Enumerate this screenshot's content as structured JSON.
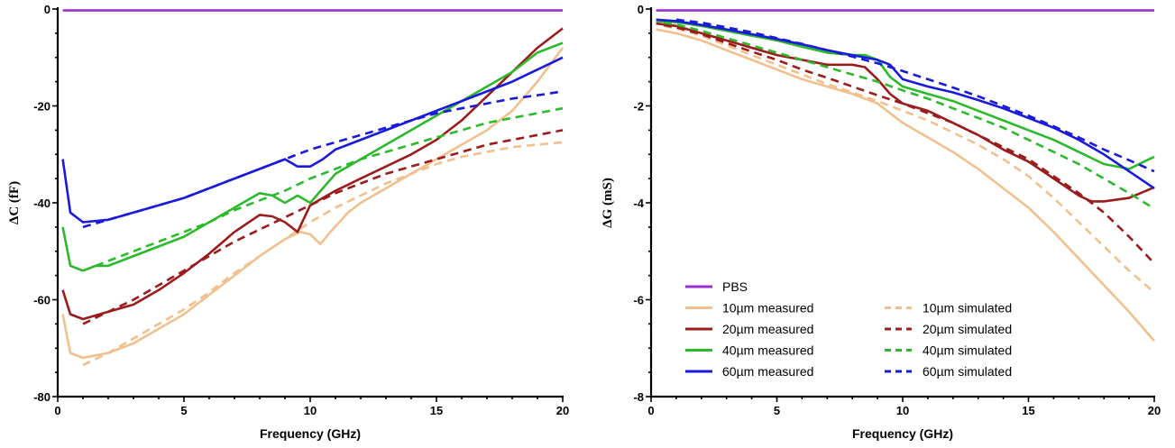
{
  "chart_data": [
    {
      "type": "line",
      "xlabel": "Frequency (GHz)",
      "ylabel": "ΔC (fF)",
      "xlim": [
        0,
        20
      ],
      "ylim": [
        -80,
        0
      ],
      "xticks": [
        0,
        5,
        10,
        15,
        20
      ],
      "yticks": [
        0,
        -20,
        -40,
        -60,
        -80
      ],
      "grid": false,
      "series": [
        {
          "name": "PBS",
          "color": "#9b30d0",
          "style": "solid",
          "x": [
            0.2,
            20
          ],
          "y": [
            -0.3,
            -0.3
          ]
        },
        {
          "name": "10µm measured",
          "color": "#f2c08e",
          "style": "solid",
          "x": [
            0.2,
            0.5,
            1,
            1.5,
            2,
            3,
            4,
            5,
            6,
            7,
            8,
            9,
            9.6,
            10,
            10.4,
            10.8,
            11.5,
            12,
            13,
            14,
            15,
            16,
            17,
            18,
            19,
            20
          ],
          "y": [
            -63,
            -71,
            -72,
            -71.5,
            -71,
            -69,
            -66,
            -63,
            -59,
            -55,
            -51,
            -47.5,
            -46,
            -46.5,
            -48.5,
            -46,
            -42,
            -40,
            -37,
            -34,
            -31,
            -28,
            -25,
            -21,
            -15,
            -8
          ]
        },
        {
          "name": "10µm simulated",
          "color": "#f2c08e",
          "style": "dashed",
          "x": [
            1,
            2,
            3,
            4,
            5,
            6,
            7,
            8,
            9,
            10,
            11,
            12,
            13,
            14,
            15,
            16,
            17,
            18,
            19,
            20
          ],
          "y": [
            -73.5,
            -71,
            -68,
            -65,
            -62,
            -58.5,
            -54.5,
            -51,
            -47.5,
            -44,
            -41,
            -38.5,
            -36,
            -34,
            -32,
            -30.5,
            -29.5,
            -28.5,
            -28,
            -27.5
          ]
        },
        {
          "name": "20µm measured",
          "color": "#9b1c1c",
          "style": "solid",
          "x": [
            0.2,
            0.5,
            1,
            2,
            3,
            4,
            5,
            6,
            7,
            8,
            8.5,
            9,
            9.5,
            10,
            10.5,
            11,
            12,
            13,
            14,
            15,
            16,
            17,
            18,
            19,
            20
          ],
          "y": [
            -58,
            -63,
            -64,
            -62.5,
            -61,
            -58,
            -54.5,
            -50.5,
            -46,
            -42.5,
            -42.8,
            -44,
            -46,
            -40.5,
            -39,
            -37.5,
            -35,
            -32.5,
            -30,
            -27,
            -23,
            -18,
            -13,
            -8,
            -4
          ]
        },
        {
          "name": "20µm simulated",
          "color": "#9b1c1c",
          "style": "dashed",
          "x": [
            1,
            2,
            3,
            4,
            5,
            6,
            7,
            8,
            9,
            10,
            11,
            12,
            13,
            14,
            15,
            16,
            17,
            18,
            19,
            20
          ],
          "y": [
            -65,
            -62.5,
            -60,
            -57,
            -54,
            -51,
            -48,
            -45.5,
            -43,
            -40.5,
            -38,
            -36,
            -34,
            -32.5,
            -31,
            -29.5,
            -28,
            -27,
            -26,
            -25
          ]
        },
        {
          "name": "40µm measured",
          "color": "#2db92d",
          "style": "solid",
          "x": [
            0.2,
            0.5,
            1,
            1.5,
            2,
            3,
            4,
            5,
            6,
            7,
            8,
            8.5,
            9,
            9.5,
            10,
            10.5,
            11,
            12,
            13,
            14,
            15,
            16,
            17,
            18,
            19,
            20
          ],
          "y": [
            -45,
            -53,
            -54,
            -53,
            -53,
            -51,
            -49,
            -47,
            -44,
            -41,
            -38,
            -38.5,
            -40,
            -38.5,
            -40,
            -37,
            -34,
            -31,
            -28,
            -25,
            -22,
            -19,
            -16,
            -13,
            -9,
            -7
          ]
        },
        {
          "name": "40µm simulated",
          "color": "#2db92d",
          "style": "dashed",
          "x": [
            1,
            2,
            3,
            4,
            5,
            6,
            7,
            8,
            9,
            10,
            11,
            12,
            13,
            14,
            15,
            16,
            17,
            18,
            19,
            20
          ],
          "y": [
            -54,
            -52,
            -50,
            -48,
            -46,
            -44,
            -41.5,
            -39.5,
            -37.5,
            -35,
            -33,
            -31,
            -29.5,
            -28,
            -26.5,
            -25,
            -23.5,
            -22.5,
            -21.5,
            -20.5
          ]
        },
        {
          "name": "60µm measured",
          "color": "#1a1adc",
          "style": "solid",
          "x": [
            0.2,
            0.5,
            1,
            2,
            3,
            4,
            5,
            6,
            7,
            8,
            9,
            9.5,
            10,
            10.5,
            11,
            12,
            13,
            14,
            15,
            16,
            17,
            18,
            19,
            20
          ],
          "y": [
            -31,
            -42,
            -44,
            -43.5,
            -42,
            -40.5,
            -39,
            -37,
            -35,
            -33,
            -31,
            -32.5,
            -32.5,
            -31,
            -29,
            -27,
            -25,
            -23,
            -21,
            -19,
            -17,
            -15,
            -12.5,
            -10
          ]
        },
        {
          "name": "60µm simulated",
          "color": "#1a1adc",
          "style": "dashed",
          "x": [
            1,
            2,
            3,
            4,
            5,
            6,
            7,
            8,
            9,
            10,
            11,
            12,
            13,
            14,
            15,
            16,
            17,
            18,
            19,
            20
          ],
          "y": [
            -45,
            -43.5,
            -42,
            -40.5,
            -39,
            -37,
            -35,
            -33,
            -31,
            -29,
            -27.5,
            -26,
            -24.5,
            -23,
            -21.5,
            -20.5,
            -19.5,
            -18.5,
            -17.8,
            -17
          ]
        }
      ]
    },
    {
      "type": "line",
      "xlabel": "Frequency (GHz)",
      "ylabel": "ΔG (mS)",
      "xlim": [
        0,
        20
      ],
      "ylim": [
        -8,
        0
      ],
      "xticks": [
        0,
        5,
        10,
        15,
        20
      ],
      "yticks": [
        0,
        -2,
        -4,
        -6,
        -8
      ],
      "grid": false,
      "legend": {
        "placement": "bottom-left",
        "entries": [
          {
            "label": "PBS",
            "color": "#9b30d0",
            "style": "solid"
          },
          {
            "label": "10µm measured",
            "color": "#f2c08e",
            "style": "solid"
          },
          {
            "label": "10µm simulated",
            "color": "#f2c08e",
            "style": "dashed"
          },
          {
            "label": "20µm measured",
            "color": "#9b1c1c",
            "style": "solid"
          },
          {
            "label": "20µm simulated",
            "color": "#9b1c1c",
            "style": "dashed"
          },
          {
            "label": "40µm measured",
            "color": "#2db92d",
            "style": "solid"
          },
          {
            "label": "40µm simulated",
            "color": "#2db92d",
            "style": "dashed"
          },
          {
            "label": "60µm measured",
            "color": "#1a1adc",
            "style": "solid"
          },
          {
            "label": "60µm simulated",
            "color": "#1a1adc",
            "style": "dashed"
          }
        ]
      },
      "series": [
        {
          "name": "PBS",
          "color": "#9b30d0",
          "style": "solid",
          "x": [
            0.2,
            20
          ],
          "y": [
            -0.03,
            -0.03
          ]
        },
        {
          "name": "10µm measured",
          "color": "#f2c08e",
          "style": "solid",
          "x": [
            0.2,
            1,
            2,
            3,
            4,
            5,
            6,
            7,
            8,
            9,
            10,
            11,
            12,
            13,
            14,
            15,
            16,
            17,
            18,
            19,
            20
          ],
          "y": [
            -0.42,
            -0.5,
            -0.65,
            -0.85,
            -1.05,
            -1.25,
            -1.45,
            -1.6,
            -1.75,
            -1.95,
            -2.35,
            -2.65,
            -2.95,
            -3.3,
            -3.7,
            -4.1,
            -4.6,
            -5.15,
            -5.7,
            -6.25,
            -6.85
          ]
        },
        {
          "name": "10µm simulated",
          "color": "#f2c08e",
          "style": "dashed",
          "x": [
            0.5,
            1,
            2,
            3,
            4,
            5,
            6,
            7,
            8,
            9,
            10,
            11,
            12,
            13,
            14,
            15,
            16,
            17,
            18,
            19,
            20
          ],
          "y": [
            -0.35,
            -0.4,
            -0.55,
            -0.75,
            -0.95,
            -1.15,
            -1.35,
            -1.55,
            -1.72,
            -1.9,
            -2.1,
            -2.3,
            -2.55,
            -2.8,
            -3.1,
            -3.45,
            -3.9,
            -4.4,
            -4.9,
            -5.4,
            -5.85
          ]
        },
        {
          "name": "20µm measured",
          "color": "#9b1c1c",
          "style": "solid",
          "x": [
            0.2,
            1,
            2,
            3,
            4,
            5,
            6,
            7,
            8,
            8.5,
            9,
            9.5,
            10,
            11,
            12,
            13,
            14,
            15,
            16,
            17,
            17.5,
            18,
            19,
            20
          ],
          "y": [
            -0.3,
            -0.35,
            -0.5,
            -0.65,
            -0.8,
            -0.95,
            -1.05,
            -1.15,
            -1.15,
            -1.2,
            -1.45,
            -1.75,
            -1.95,
            -2.1,
            -2.35,
            -2.6,
            -2.9,
            -3.15,
            -3.5,
            -3.85,
            -3.97,
            -3.97,
            -3.9,
            -3.68
          ]
        },
        {
          "name": "20µm simulated",
          "color": "#9b1c1c",
          "style": "dashed",
          "x": [
            0.5,
            1,
            2,
            3,
            4,
            5,
            6,
            7,
            8,
            9,
            10,
            11,
            12,
            13,
            14,
            15,
            16,
            17,
            18,
            19,
            20
          ],
          "y": [
            -0.33,
            -0.38,
            -0.52,
            -0.7,
            -0.88,
            -1.05,
            -1.25,
            -1.42,
            -1.6,
            -1.78,
            -1.95,
            -2.15,
            -2.35,
            -2.6,
            -2.85,
            -3.1,
            -3.45,
            -3.8,
            -4.2,
            -4.7,
            -5.25
          ]
        },
        {
          "name": "40µm measured",
          "color": "#2db92d",
          "style": "solid",
          "x": [
            0.2,
            1,
            2,
            3,
            4,
            5,
            6,
            7,
            8,
            8.5,
            9,
            9.5,
            10,
            11,
            12,
            13,
            14,
            15,
            16,
            17,
            18,
            19,
            20
          ],
          "y": [
            -0.25,
            -0.27,
            -0.35,
            -0.45,
            -0.55,
            -0.65,
            -0.78,
            -0.9,
            -0.95,
            -0.95,
            -1.05,
            -1.4,
            -1.6,
            -1.75,
            -1.9,
            -2.1,
            -2.3,
            -2.5,
            -2.7,
            -2.95,
            -3.2,
            -3.3,
            -3.05
          ]
        },
        {
          "name": "40µm simulated",
          "color": "#2db92d",
          "style": "dashed",
          "x": [
            0.5,
            1,
            2,
            3,
            4,
            5,
            6,
            7,
            8,
            9,
            10,
            11,
            12,
            13,
            14,
            15,
            16,
            17,
            18,
            19,
            20
          ],
          "y": [
            -0.28,
            -0.32,
            -0.45,
            -0.6,
            -0.75,
            -0.9,
            -1.05,
            -1.2,
            -1.35,
            -1.5,
            -1.68,
            -1.85,
            -2.05,
            -2.25,
            -2.45,
            -2.7,
            -2.95,
            -3.2,
            -3.5,
            -3.8,
            -4.12
          ]
        },
        {
          "name": "60µm measured",
          "color": "#1a1adc",
          "style": "solid",
          "x": [
            0.2,
            1,
            2,
            3,
            4,
            5,
            6,
            7,
            8,
            9,
            9.5,
            10,
            11,
            12,
            13,
            14,
            15,
            16,
            17,
            18,
            19,
            20
          ],
          "y": [
            -0.22,
            -0.25,
            -0.33,
            -0.42,
            -0.52,
            -0.62,
            -0.73,
            -0.85,
            -0.95,
            -1.05,
            -1.15,
            -1.45,
            -1.6,
            -1.72,
            -1.88,
            -2.05,
            -2.25,
            -2.45,
            -2.7,
            -3.0,
            -3.35,
            -3.7
          ]
        },
        {
          "name": "60µm simulated",
          "color": "#1a1adc",
          "style": "dashed",
          "x": [
            1,
            2,
            3,
            4,
            5,
            6,
            7,
            8,
            9,
            10,
            11,
            12,
            13,
            14,
            15,
            16,
            17,
            18,
            19,
            20
          ],
          "y": [
            -0.22,
            -0.28,
            -0.38,
            -0.48,
            -0.6,
            -0.72,
            -0.85,
            -0.98,
            -1.12,
            -1.28,
            -1.45,
            -1.62,
            -1.8,
            -2.0,
            -2.2,
            -2.42,
            -2.65,
            -2.9,
            -3.12,
            -3.35
          ]
        }
      ]
    }
  ]
}
